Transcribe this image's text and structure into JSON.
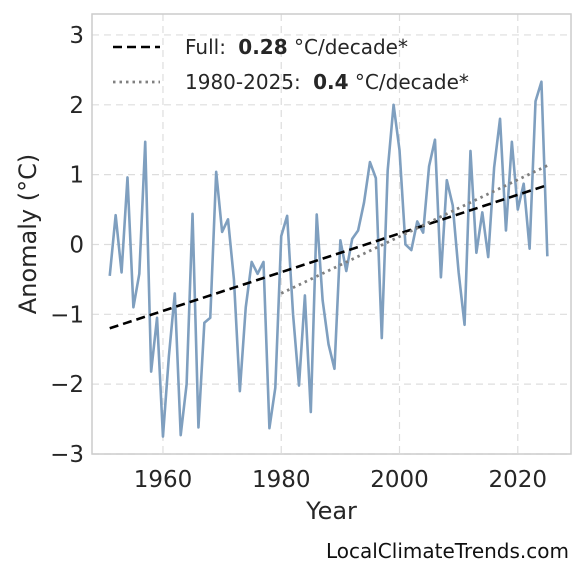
{
  "chart_data": {
    "type": "line",
    "xlabel": "Year",
    "ylabel": "Anomaly (°C)",
    "xlim": [
      1948,
      2029
    ],
    "ylim": [
      -3,
      3.3
    ],
    "xticks": [
      1960,
      1980,
      2000,
      2020
    ],
    "yticks": [
      -3,
      -2,
      -1,
      0,
      1,
      2,
      3
    ],
    "ytick_labels": [
      "−3",
      "−2",
      "−1",
      "0",
      "1",
      "2",
      "3"
    ],
    "grid": true,
    "legend_placement": "top-left",
    "series": [
      {
        "color": "#7f9fbf",
        "style": "solid",
        "x": [
          1951,
          1952,
          1953,
          1954,
          1955,
          1956,
          1957,
          1958,
          1959,
          1960,
          1961,
          1962,
          1963,
          1964,
          1965,
          1966,
          1967,
          1968,
          1969,
          1970,
          1971,
          1972,
          1973,
          1974,
          1975,
          1976,
          1977,
          1978,
          1979,
          1980,
          1981,
          1982,
          1983,
          1984,
          1985,
          1986,
          1987,
          1988,
          1989,
          1990,
          1991,
          1992,
          1993,
          1994,
          1995,
          1996,
          1997,
          1998,
          1999,
          2000,
          2001,
          2002,
          2003,
          2004,
          2005,
          2006,
          2007,
          2008,
          2009,
          2010,
          2011,
          2012,
          2013,
          2014,
          2015,
          2016,
          2017,
          2018,
          2019,
          2020,
          2021,
          2022,
          2023,
          2024,
          2025
        ],
        "y": [
          -0.45,
          0.42,
          -0.4,
          0.96,
          -0.9,
          -0.42,
          1.47,
          -1.82,
          -1.05,
          -2.75,
          -1.6,
          -0.7,
          -2.73,
          -2.0,
          0.44,
          -2.62,
          -1.12,
          -1.05,
          1.04,
          0.18,
          0.36,
          -0.5,
          -2.1,
          -0.9,
          -0.25,
          -0.42,
          -0.25,
          -2.63,
          -2.05,
          0.12,
          0.41,
          -1.0,
          -2.02,
          -0.73,
          -2.4,
          0.43,
          -0.8,
          -1.43,
          -1.78,
          0.06,
          -0.38,
          0.08,
          0.2,
          0.6,
          1.18,
          0.95,
          -1.34,
          1.06,
          2.0,
          1.35,
          0.0,
          -0.08,
          0.33,
          0.17,
          1.12,
          1.5,
          -0.47,
          0.92,
          0.56,
          -0.4,
          -1.15,
          1.34,
          -0.12,
          0.46,
          -0.18,
          1.1,
          1.8,
          0.2,
          1.47,
          0.5,
          0.87,
          -0.06,
          2.05,
          2.33,
          -0.17
        ]
      },
      {
        "name": "Full:",
        "rate": "0.28",
        "unit": "°C/decade*",
        "color": "#000000",
        "style": "dashed",
        "x": [
          1951,
          2025
        ],
        "y": [
          -1.2,
          0.85
        ]
      },
      {
        "name": "1980-2025:",
        "rate": "0.4",
        "unit": "°C/decade*",
        "color": "#808080",
        "style": "dotted",
        "x": [
          1980,
          2025
        ],
        "y": [
          -0.7,
          1.13
        ]
      }
    ]
  },
  "footer": {
    "site": "LocalClimateTrends.com"
  }
}
